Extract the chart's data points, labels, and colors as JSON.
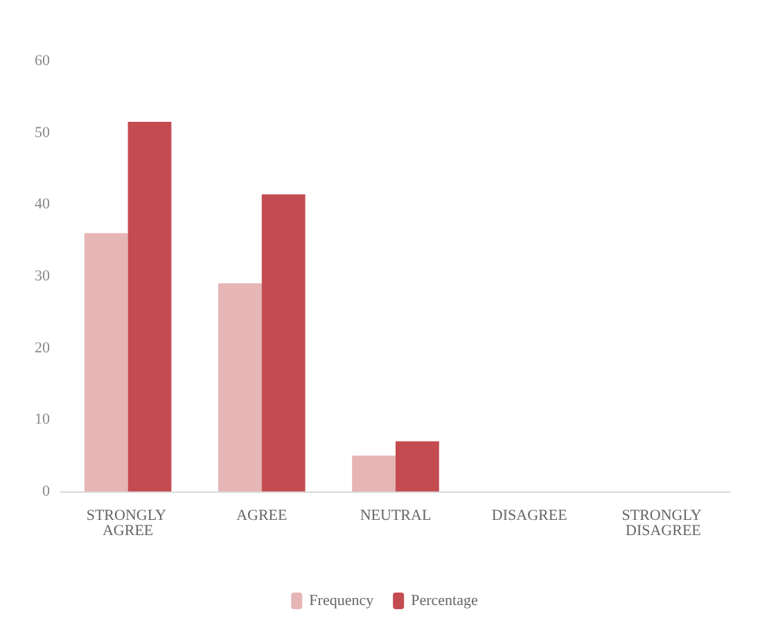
{
  "chart_data": {
    "type": "bar",
    "categories": [
      "STRONGLY AGREE",
      "AGREE",
      "NEUTRAL",
      "DISAGREE",
      "STRONGLY DISAGREE"
    ],
    "series": [
      {
        "name": "Frequency",
        "color": "#e6b5b6",
        "values": [
          36,
          29,
          5,
          0,
          0
        ]
      },
      {
        "name": "Percentage",
        "color": "#c44c51",
        "values": [
          51.5,
          41.4,
          7,
          0,
          0
        ]
      }
    ],
    "ylim": [
      0,
      60
    ],
    "yticks": [
      0,
      10,
      20,
      30,
      40,
      50,
      60
    ],
    "grid": false,
    "legend": "bottom"
  }
}
